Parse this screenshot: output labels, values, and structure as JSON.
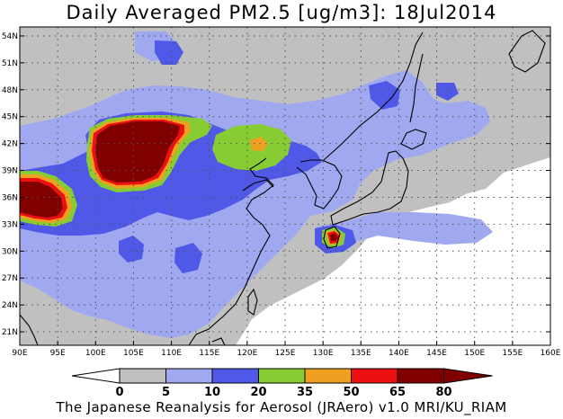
{
  "title": "Daily Averaged PM2.5 [ug/m3]: 18Jul2014",
  "credit": "The Japanese Reanalysis for Aerosol (JRAero) v1.0 MRI/KU_RIAM",
  "map": {
    "lon_range": [
      90,
      160
    ],
    "lat_range": [
      19.5,
      55
    ],
    "grid": true,
    "lon_ticks": [
      {
        "value": 90,
        "label": "90E"
      },
      {
        "value": 95,
        "label": "95E"
      },
      {
        "value": 100,
        "label": "100E"
      },
      {
        "value": 105,
        "label": "105E"
      },
      {
        "value": 110,
        "label": "110E"
      },
      {
        "value": 115,
        "label": "115E"
      },
      {
        "value": 120,
        "label": "120E"
      },
      {
        "value": 125,
        "label": "125E"
      },
      {
        "value": 130,
        "label": "130E"
      },
      {
        "value": 135,
        "label": "135E"
      },
      {
        "value": 140,
        "label": "140E"
      },
      {
        "value": 145,
        "label": "145E"
      },
      {
        "value": 150,
        "label": "150E"
      },
      {
        "value": 155,
        "label": "155E"
      },
      {
        "value": 160,
        "label": "160E"
      }
    ],
    "lat_ticks": [
      {
        "value": 21,
        "label": "21N"
      },
      {
        "value": 24,
        "label": "24N"
      },
      {
        "value": 27,
        "label": "27N"
      },
      {
        "value": 30,
        "label": "30N"
      },
      {
        "value": 33,
        "label": "33N"
      },
      {
        "value": 36,
        "label": "36N"
      },
      {
        "value": 39,
        "label": "39N"
      },
      {
        "value": 42,
        "label": "42N"
      },
      {
        "value": 45,
        "label": "45N"
      },
      {
        "value": 48,
        "label": "48N"
      },
      {
        "value": 51,
        "label": "51N"
      },
      {
        "value": 54,
        "label": "54N"
      }
    ]
  },
  "colorbar": {
    "levels": [
      "0",
      "5",
      "10",
      "20",
      "35",
      "50",
      "65",
      "80"
    ],
    "colors": [
      "#ffffff",
      "#c0c0c0",
      "#a0a8f0",
      "#5058e8",
      "#88cc33",
      "#f0a020",
      "#ee1010",
      "#800000"
    ]
  }
}
